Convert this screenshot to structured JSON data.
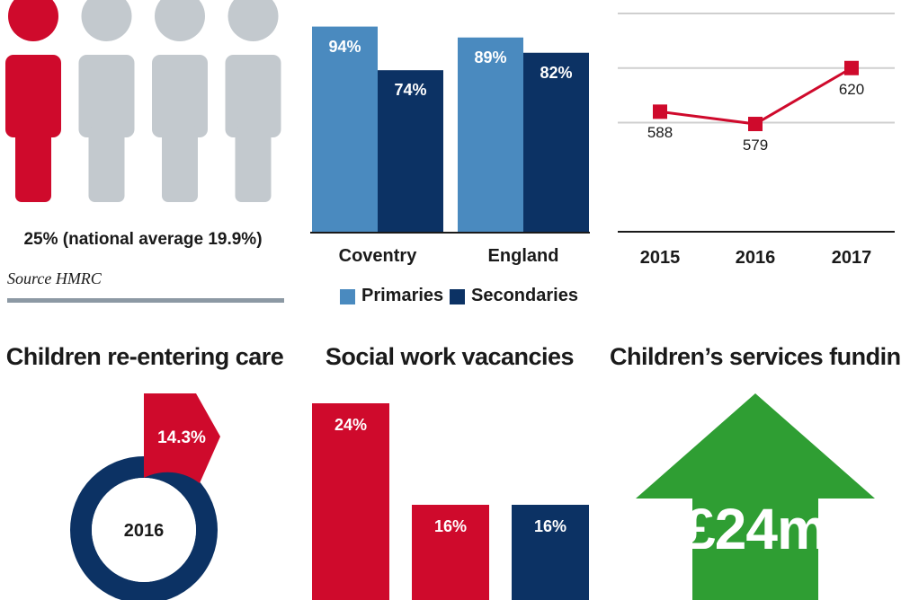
{
  "colors": {
    "red": "#cf0a2c",
    "grey_figure": "#c3c9ce",
    "light_blue": "#4a8abf",
    "navy": "#0c3264",
    "green": "#2f9e33",
    "rule": "#8c99a4",
    "grid": "#cfcfcf"
  },
  "poverty": {
    "caption": "25% (national average 19.9%)",
    "source": "Source HMRC",
    "figures_total": 4,
    "figures_highlighted": 1
  },
  "chart_data": [
    {
      "type": "bar",
      "categories": [
        "Coventry",
        "England"
      ],
      "series": [
        {
          "name": "Primaries",
          "values": [
            94,
            89
          ],
          "labels": [
            "94%",
            "89%"
          ]
        },
        {
          "name": "Secondaries",
          "values": [
            74,
            82
          ],
          "labels": [
            "74%",
            "82%"
          ]
        }
      ],
      "legend": [
        "Primaries",
        "Secondaries"
      ],
      "legend_position": "bottom",
      "ylim": [
        0,
        100
      ]
    },
    {
      "type": "line",
      "x": [
        "2015",
        "2016",
        "2017"
      ],
      "series": [
        {
          "values": [
            588,
            579,
            620
          ],
          "labels": [
            "588",
            "579",
            "620"
          ]
        }
      ],
      "ylim": [
        500,
        660
      ],
      "grid": true
    },
    {
      "type": "pie",
      "title": "Children re-entering care",
      "center_label": "2016",
      "slices": [
        {
          "label": "14.3%",
          "value": 14.3,
          "color": "#cf0a2c"
        },
        {
          "label": "",
          "value": 85.7,
          "color": "#0c3264"
        }
      ]
    },
    {
      "type": "bar",
      "title": "Social work vacancies",
      "categories": [
        "",
        "",
        ""
      ],
      "values": [
        24,
        16,
        16
      ],
      "labels": [
        "24%",
        "16%",
        "16%"
      ],
      "colors": [
        "#cf0a2c",
        "#cf0a2c",
        "#0c3264"
      ],
      "ylim": [
        0,
        28
      ]
    }
  ],
  "funding": {
    "title": "Children’s services funding",
    "amount": "£24m",
    "direction": "up"
  }
}
